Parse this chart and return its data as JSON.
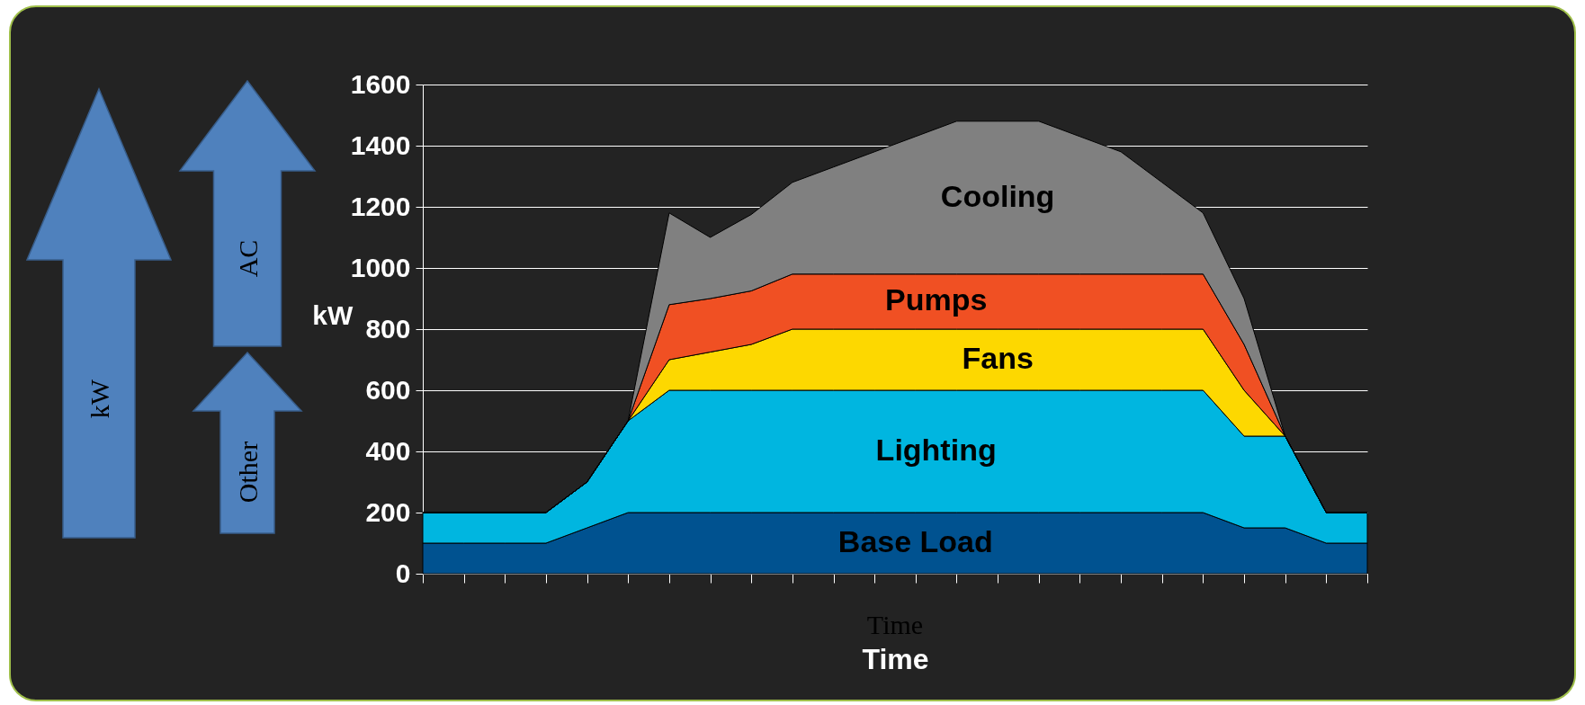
{
  "chart_data": {
    "type": "area",
    "stacked": true,
    "xlabel": "Time",
    "ylabel": "kW",
    "categories": [
      null,
      null,
      null,
      null,
      null,
      null,
      null,
      null,
      null,
      null,
      null,
      null,
      null,
      null,
      null,
      null,
      null,
      null,
      null,
      null,
      null,
      null,
      null,
      null
    ],
    "ylim": [
      0,
      1600
    ],
    "yticks": [
      0,
      200,
      400,
      600,
      800,
      1000,
      1200,
      1400,
      1600
    ],
    "grid": "y",
    "legend": false,
    "tick_labels": "y",
    "annotations": [
      "kW",
      "AC",
      "Other",
      "Time"
    ],
    "series": [
      {
        "name": "Base Load",
        "color": "#005290",
        "values": [
          100,
          100,
          100,
          100,
          150,
          200,
          200,
          200,
          200,
          200,
          200,
          200,
          200,
          200,
          200,
          200,
          200,
          200,
          200,
          200,
          150,
          150,
          100,
          100
        ]
      },
      {
        "name": "Lighting",
        "color": "#00b6e0",
        "values": [
          100,
          100,
          100,
          100,
          150,
          300,
          400,
          400,
          400,
          400,
          400,
          400,
          400,
          400,
          400,
          400,
          400,
          400,
          400,
          400,
          300,
          300,
          100,
          100
        ]
      },
      {
        "name": "Fans",
        "color": "#fdd800",
        "values": [
          0,
          0,
          0,
          0,
          0,
          0,
          100,
          125,
          150,
          200,
          200,
          200,
          200,
          200,
          200,
          200,
          200,
          200,
          200,
          200,
          150,
          0,
          0,
          0
        ]
      },
      {
        "name": "Pumps",
        "color": "#f05023",
        "values": [
          0,
          0,
          0,
          0,
          0,
          0,
          180,
          175,
          175,
          180,
          180,
          180,
          180,
          180,
          180,
          180,
          180,
          180,
          180,
          180,
          150,
          0,
          0,
          0
        ]
      },
      {
        "name": "Cooling",
        "color": "#808080",
        "values": [
          0,
          0,
          0,
          0,
          0,
          0,
          300,
          200,
          250,
          300,
          350,
          400,
          450,
          500,
          500,
          500,
          450,
          400,
          300,
          200,
          150,
          0,
          0,
          0
        ]
      }
    ]
  }
}
